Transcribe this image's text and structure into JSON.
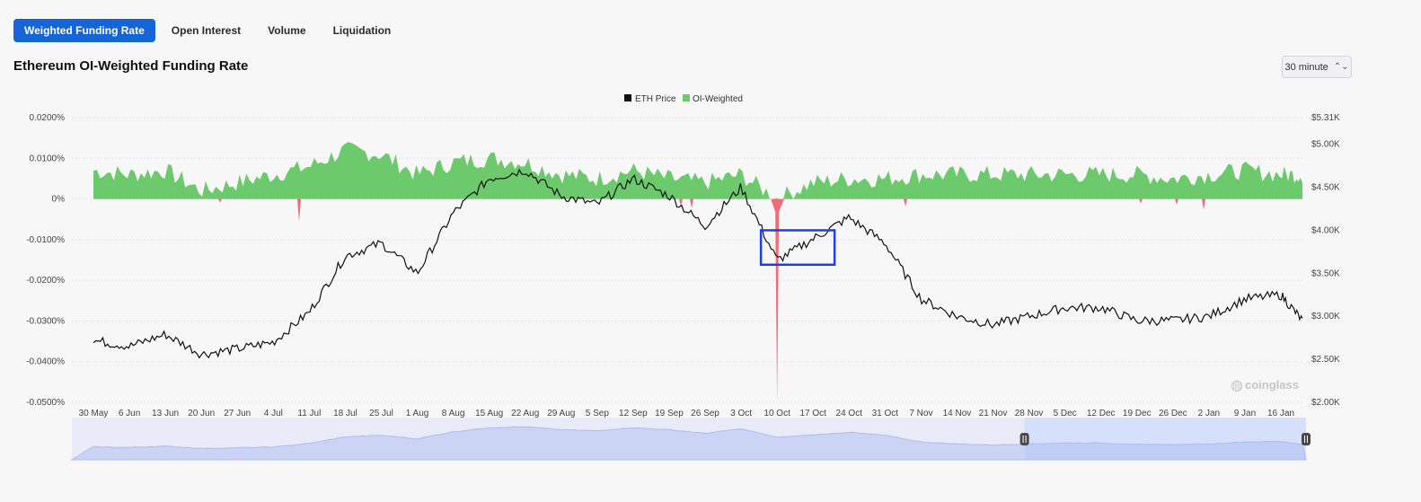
{
  "tabs": [
    {
      "label": "Weighted Funding Rate",
      "active": true
    },
    {
      "label": "Open Interest",
      "active": false
    },
    {
      "label": "Volume",
      "active": false
    },
    {
      "label": "Liquidation",
      "active": false
    }
  ],
  "title": "Ethereum OI-Weighted Funding Rate",
  "interval": {
    "value": "30 minute",
    "icon": "chevron-updown-icon"
  },
  "colors": {
    "accent": "#1565d8",
    "positive": "#6cc96c",
    "negative": "#ef6b7a",
    "price": "#111111",
    "highlight": "#1f3fe0",
    "navigator": "#aebdf0"
  },
  "watermark": "coinglass",
  "chart_data": {
    "type": "area",
    "legend": [
      {
        "name": "ETH Price",
        "color": "#111111"
      },
      {
        "name": "OI-Weighted",
        "color": "#6cc96c"
      }
    ],
    "legend_position": "top-center",
    "grid": true,
    "x_ticks": [
      "30 May",
      "6 Jun",
      "13 Jun",
      "20 Jun",
      "27 Jun",
      "4 Jul",
      "11 Jul",
      "18 Jul",
      "25 Jul",
      "1 Aug",
      "8 Aug",
      "15 Aug",
      "22 Aug",
      "29 Aug",
      "5 Sep",
      "12 Sep",
      "19 Sep",
      "26 Sep",
      "3 Oct",
      "10 Oct",
      "17 Oct",
      "24 Oct",
      "31 Oct",
      "7 Nov",
      "14 Nov",
      "21 Nov",
      "28 Nov",
      "5 Dec",
      "12 Dec",
      "19 Dec",
      "26 Dec",
      "2 Jan",
      "9 Jan",
      "16 Jan"
    ],
    "y_left": {
      "ticks": [
        "0.0200%",
        "0.0100%",
        "0%",
        "-0.0100%",
        "-0.0200%",
        "-0.0300%",
        "-0.0400%",
        "-0.0500%"
      ],
      "ylim": [
        -0.05,
        0.02
      ],
      "unit": "%"
    },
    "y_right": {
      "ticks": [
        "$5.31K",
        "$5.00K",
        "$4.50K",
        "$4.00K",
        "$3.50K",
        "$3.00K",
        "$2.50K",
        "$2.00K"
      ],
      "ylim": [
        2000,
        5310
      ]
    },
    "series": [
      {
        "name": "ETH Price",
        "axis": "right",
        "x": [
          "30 May",
          "6 Jun",
          "13 Jun",
          "20 Jun",
          "27 Jun",
          "4 Jul",
          "11 Jul",
          "18 Jul",
          "25 Jul",
          "1 Aug",
          "8 Aug",
          "15 Aug",
          "22 Aug",
          "29 Aug",
          "5 Sep",
          "12 Sep",
          "19 Sep",
          "26 Sep",
          "3 Oct",
          "10 Oct",
          "17 Oct",
          "24 Oct",
          "31 Oct",
          "7 Nov",
          "14 Nov",
          "21 Nov",
          "28 Nov",
          "5 Dec",
          "12 Dec",
          "19 Dec",
          "26 Dec",
          "2 Jan",
          "9 Jan",
          "16 Jan",
          "20 Jan"
        ],
        "values": [
          2720,
          2650,
          2790,
          2560,
          2620,
          2700,
          3050,
          3700,
          3850,
          3500,
          4200,
          4600,
          4700,
          4400,
          4300,
          4600,
          4400,
          4050,
          4500,
          3650,
          3900,
          4150,
          3850,
          3200,
          3000,
          2900,
          3000,
          3100,
          3100,
          2950,
          2950,
          3000,
          3200,
          3250,
          2950
        ]
      },
      {
        "name": "OI-Weighted",
        "axis": "left",
        "x": [
          "30 May",
          "6 Jun",
          "13 Jun",
          "20 Jun",
          "27 Jun",
          "4 Jul",
          "11 Jul",
          "18 Jul",
          "25 Jul",
          "1 Aug",
          "8 Aug",
          "15 Aug",
          "22 Aug",
          "29 Aug",
          "5 Sep",
          "12 Sep",
          "19 Sep",
          "26 Sep",
          "3 Oct",
          "10 Oct",
          "17 Oct",
          "24 Oct",
          "31 Oct",
          "7 Nov",
          "14 Nov",
          "21 Nov",
          "28 Nov",
          "5 Dec",
          "12 Dec",
          "19 Dec",
          "26 Dec",
          "2 Jan",
          "9 Jan",
          "16 Jan",
          "20 Jan"
        ],
        "values": [
          0.007,
          0.006,
          0.007,
          0.002,
          0.004,
          0.006,
          0.008,
          0.012,
          0.011,
          0.006,
          0.009,
          0.01,
          0.009,
          0.006,
          0.005,
          0.007,
          0.005,
          0.004,
          0.006,
          -0.05,
          0.004,
          0.005,
          0.005,
          0.006,
          0.006,
          0.006,
          0.006,
          0.006,
          0.006,
          0.006,
          0.005,
          0.006,
          0.007,
          0.006,
          0.006
        ]
      }
    ],
    "annotations": [
      {
        "type": "rectangle",
        "x_range": [
          "10 Oct",
          "21 Oct"
        ],
        "y_range": [
          3600,
          4000
        ],
        "axis": "right"
      }
    ],
    "navigator": {
      "selected_range": [
        "28 Nov",
        "20 Jan"
      ]
    }
  }
}
